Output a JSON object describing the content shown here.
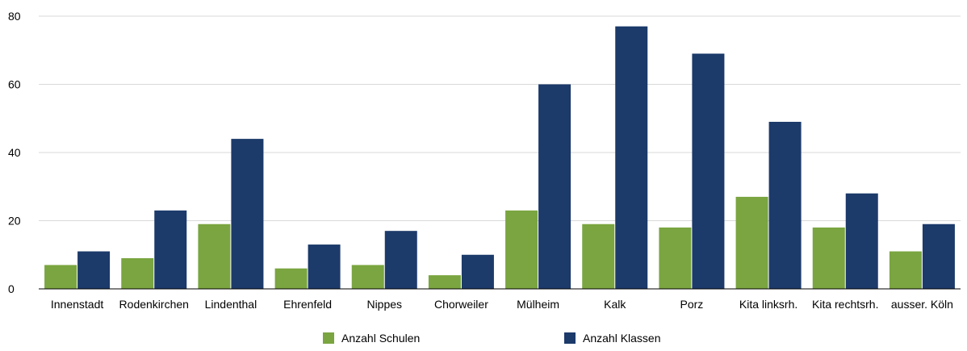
{
  "chart_data": {
    "type": "bar",
    "title": "",
    "xlabel": "",
    "ylabel": "",
    "ylim": [
      0,
      80
    ],
    "yticks": [
      0,
      20,
      40,
      60,
      80
    ],
    "grid": true,
    "legend_position": "bottom",
    "categories": [
      "Innenstadt",
      "Rodenkirchen",
      "Lindenthal",
      "Ehrenfeld",
      "Nippes",
      "Chorweiler",
      "Mülheim",
      "Kalk",
      "Porz",
      "Kita linksrh.",
      "Kita rechtsrh.",
      "ausser. Köln"
    ],
    "series": [
      {
        "name": "Anzahl Schulen",
        "color": "#7aa540",
        "values": [
          7,
          9,
          19,
          6,
          7,
          4,
          23,
          19,
          18,
          27,
          18,
          11
        ]
      },
      {
        "name": "Anzahl Klassen",
        "color": "#1c3a6a",
        "values": [
          11,
          23,
          44,
          13,
          17,
          10,
          60,
          77,
          69,
          49,
          28,
          19
        ]
      }
    ]
  }
}
